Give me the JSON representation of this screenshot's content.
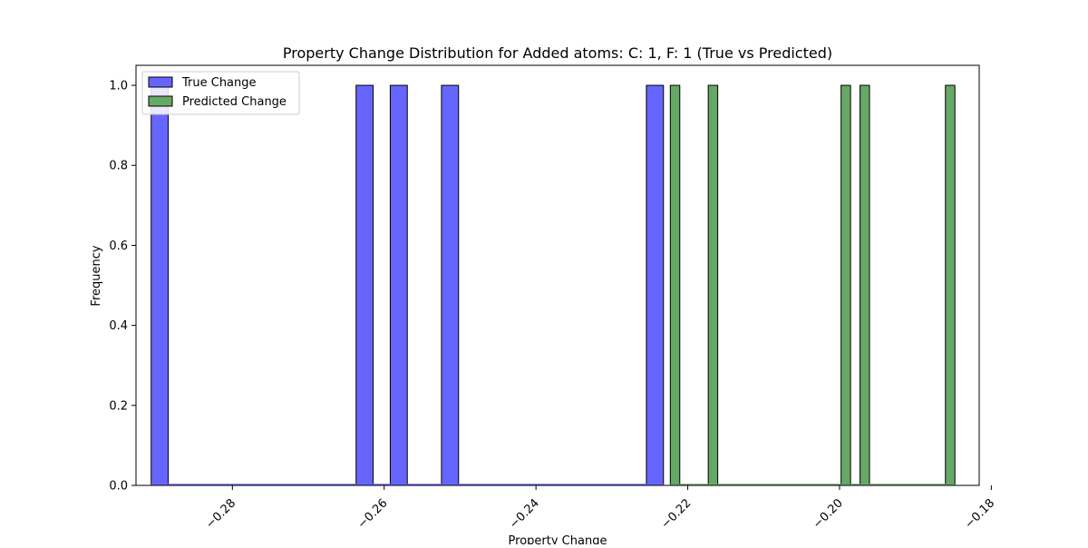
{
  "chart_data": {
    "type": "bar",
    "title": "Property Change Distribution for Added atoms: C: 1, F: 1 (True vs Predicted)",
    "xlabel": "Property Change",
    "ylabel": "Frequency",
    "xlim": [
      -0.2927,
      -0.1816
    ],
    "ylim": [
      0,
      1.05
    ],
    "xticks": [
      {
        "value": -0.28,
        "label": "−0.28"
      },
      {
        "value": -0.26,
        "label": "−0.26"
      },
      {
        "value": -0.24,
        "label": "−0.24"
      },
      {
        "value": -0.22,
        "label": "−0.22"
      },
      {
        "value": -0.2,
        "label": "−0.20"
      },
      {
        "value": -0.18,
        "label": "−0.18"
      }
    ],
    "yticks": [
      {
        "value": 0.0,
        "label": "0.0"
      },
      {
        "value": 0.2,
        "label": "0.2"
      },
      {
        "value": 0.4,
        "label": "0.4"
      },
      {
        "value": 0.6,
        "label": "0.6"
      },
      {
        "value": 0.8,
        "label": "0.8"
      },
      {
        "value": 1.0,
        "label": "1.0"
      }
    ],
    "grid": false,
    "legend_position": "top-left",
    "series": [
      {
        "name": "True Change",
        "color": "#6666ff",
        "bin_start": -0.2907,
        "bin_width": 0.00225,
        "bin_count": 30,
        "counts": [
          1,
          0,
          0,
          0,
          0,
          0,
          0,
          0,
          0,
          0,
          0,
          0,
          1,
          0,
          1,
          0,
          0,
          1,
          0,
          0,
          0,
          0,
          0,
          0,
          0,
          0,
          0,
          0,
          0,
          1
        ]
      },
      {
        "name": "Predicted Change",
        "color": "#66a866",
        "bin_start": -0.2223,
        "bin_width": 0.00125,
        "bin_count": 30,
        "counts": [
          1,
          0,
          0,
          0,
          1,
          0,
          0,
          0,
          0,
          0,
          0,
          0,
          0,
          0,
          0,
          0,
          0,
          0,
          1,
          0,
          1,
          0,
          0,
          0,
          0,
          0,
          0,
          0,
          0,
          1
        ]
      }
    ]
  }
}
